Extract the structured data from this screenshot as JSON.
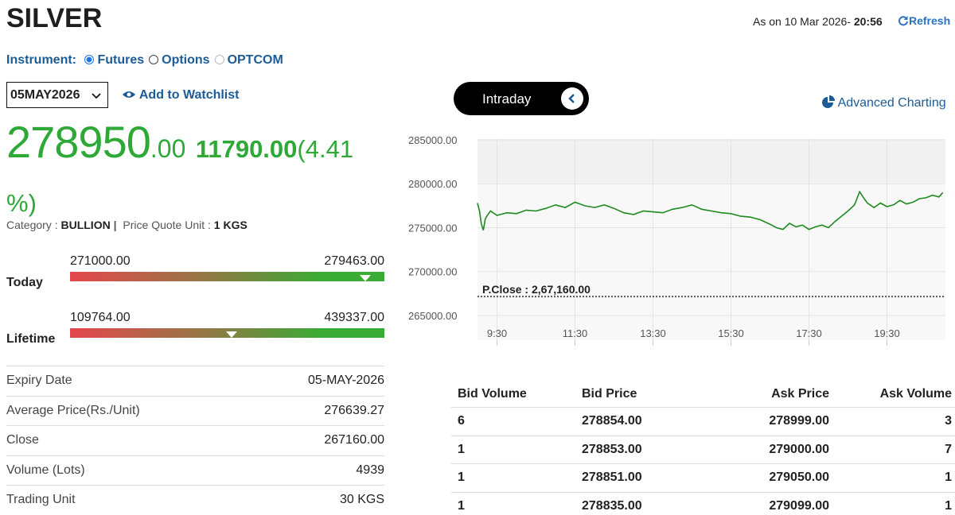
{
  "header": {
    "title": "SILVER",
    "as_on": "As on 10 Mar 2026-",
    "time": "20:56",
    "refresh": "Refresh"
  },
  "instrument": {
    "label": "Instrument:",
    "options": [
      "Futures",
      "Options",
      "OPTCOM"
    ],
    "selected": 0,
    "disabled": 2
  },
  "expiry_select": "05MAY2026",
  "watchlist": "Add to Watchlist",
  "price": {
    "main": "278950",
    "decimals": ".00",
    "change": "11790.00",
    "change_pct": "(4.41 %)"
  },
  "category": {
    "label": "Category :",
    "value": "BULLION",
    "separator": "|",
    "unit_label": "Price Quote Unit :",
    "unit_value": "1 KGS"
  },
  "ranges": [
    {
      "label": "Today",
      "low": "271000.00",
      "high": "279463.00"
    },
    {
      "label": "Lifetime",
      "low": "109764.00",
      "high": "439337.00"
    }
  ],
  "details": [
    [
      "Expiry Date",
      "05-MAY-2026"
    ],
    [
      "Average Price(Rs./Unit)",
      "276639.27"
    ],
    [
      "Close",
      "267160.00"
    ],
    [
      "Volume (Lots)",
      "4939"
    ],
    [
      "Trading Unit",
      "30 KGS"
    ]
  ],
  "chart_tabs": {
    "intraday": "Intraday",
    "advanced": "Advanced Charting"
  },
  "chart_data": {
    "type": "line",
    "color": "#1f8a1f",
    "x": [
      "9:00",
      "9:03",
      "9:06",
      "9:09",
      "9:12",
      "9:15",
      "9:20",
      "9:30",
      "9:45",
      "10:00",
      "10:15",
      "10:30",
      "10:45",
      "11:00",
      "11:15",
      "11:30",
      "11:45",
      "12:00",
      "12:15",
      "12:30",
      "12:45",
      "13:00",
      "13:15",
      "13:30",
      "13:45",
      "14:00",
      "14:15",
      "14:30",
      "14:45",
      "15:00",
      "15:15",
      "15:30",
      "15:45",
      "16:00",
      "16:15",
      "16:30",
      "16:40",
      "16:50",
      "17:00",
      "17:10",
      "17:20",
      "17:30",
      "17:40",
      "17:50",
      "18:00",
      "18:10",
      "18:20",
      "18:30",
      "18:40",
      "18:48",
      "18:55",
      "19:00",
      "19:10",
      "19:20",
      "19:30",
      "19:40",
      "19:50",
      "20:00",
      "20:10",
      "20:20",
      "20:30",
      "20:40",
      "20:50",
      "20:56"
    ],
    "values": [
      277800,
      276900,
      275400,
      274700,
      276000,
      276400,
      276900,
      276400,
      276700,
      276600,
      277000,
      276900,
      277200,
      277600,
      277300,
      277900,
      277500,
      277300,
      277600,
      277200,
      276700,
      276500,
      276900,
      276800,
      276700,
      277100,
      277300,
      277600,
      277100,
      276900,
      276700,
      276600,
      276300,
      276200,
      275900,
      275400,
      275000,
      274800,
      275500,
      275100,
      275300,
      274800,
      275100,
      275300,
      275000,
      275700,
      276300,
      276900,
      277600,
      279100,
      278300,
      277800,
      277300,
      277800,
      277400,
      277600,
      278100,
      277700,
      277900,
      278300,
      278400,
      278700,
      278500,
      279000
    ],
    "xlim": [
      "9:00",
      "21:00"
    ],
    "xticks": [
      "9:30",
      "11:30",
      "13:30",
      "15:30",
      "17:30",
      "19:30"
    ],
    "ylim": [
      264000,
      285000
    ],
    "yticks": [
      {
        "value": 285000,
        "label": "285000.00"
      },
      {
        "value": 280000,
        "label": "280000.00"
      },
      {
        "value": 275000,
        "label": "275000.00"
      },
      {
        "value": 270000,
        "label": "270000.00"
      },
      {
        "value": 265000,
        "label": "265000.00"
      }
    ],
    "reference_line": {
      "value": 267160,
      "label": "P.Close : 2,67,160.00"
    },
    "grid": true
  },
  "depth": {
    "headers": [
      "Bid Volume",
      "Bid Price",
      "Ask Price",
      "Ask Volume"
    ],
    "rows": [
      [
        "6",
        "278854.00",
        "278999.00",
        "3"
      ],
      [
        "1",
        "278853.00",
        "279000.00",
        "7"
      ],
      [
        "1",
        "278851.00",
        "279050.00",
        "1"
      ],
      [
        "1",
        "278835.00",
        "279099.00",
        "1"
      ]
    ]
  }
}
